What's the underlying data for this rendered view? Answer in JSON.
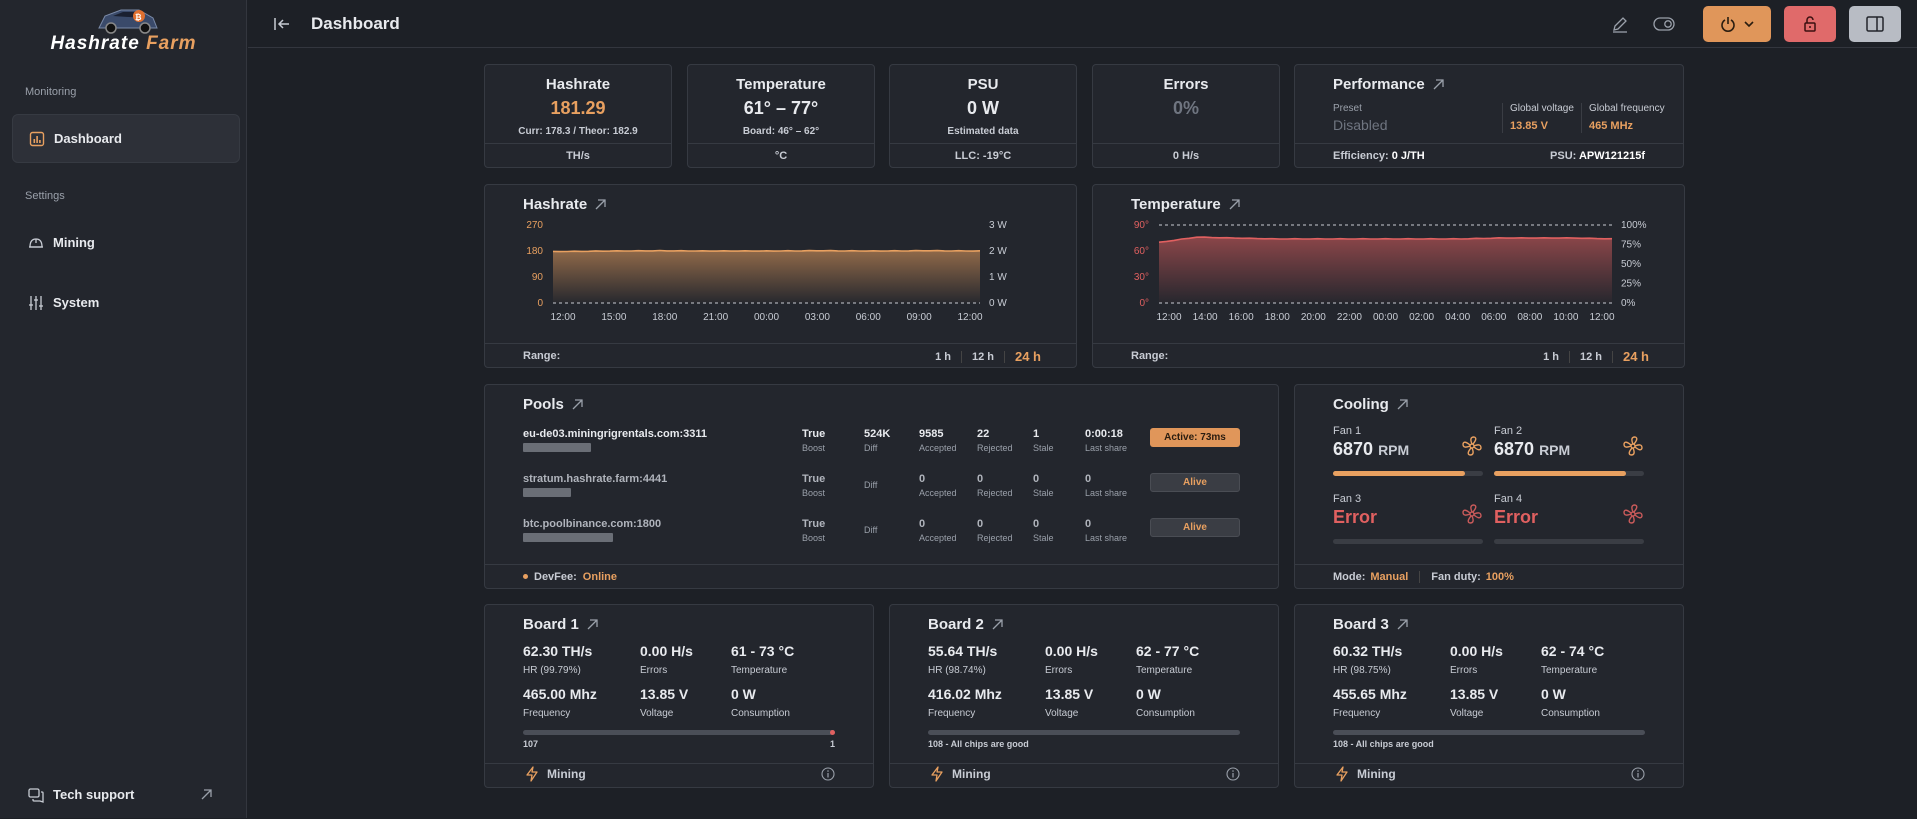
{
  "sidebar": {
    "brand_a": "Hashrate ",
    "brand_b": "Farm",
    "monitoring_label": "Monitoring",
    "settings_label": "Settings",
    "items": [
      {
        "label": "Dashboard",
        "icon": "chart-bars-icon"
      },
      {
        "label": "Mining",
        "icon": "helmet-icon"
      },
      {
        "label": "System",
        "icon": "sliders-icon"
      }
    ],
    "tech_support": "Tech support"
  },
  "header": {
    "title": "Dashboard"
  },
  "stats": {
    "hashrate": {
      "title": "Hashrate",
      "value": "181.29",
      "sub": "Curr: 178.3 / Theor: 182.9",
      "unit": "TH/s"
    },
    "temperature": {
      "title": "Temperature",
      "value": "61° – 77°",
      "sub": "Board: 46° – 62°",
      "unit": "°C"
    },
    "psu": {
      "title": "PSU",
      "value": "0 W",
      "sub": "Estimated data",
      "unit": "LLC: -19°C"
    },
    "errors": {
      "title": "Errors",
      "value": "0%",
      "unit": "0 H/s"
    },
    "performance": {
      "title": "Performance",
      "preset_label": "Preset",
      "preset_value": "Disabled",
      "voltage_label": "Global voltage",
      "voltage_value": "13.85 V",
      "freq_label": "Global frequency",
      "freq_value": "465 MHz",
      "efficiency_label": "Efficiency:",
      "efficiency_value": "0 J/TH",
      "psu_label": "PSU:",
      "psu_value": "APW121215f"
    }
  },
  "hashrate_chart": {
    "title": "Hashrate",
    "range_label": "Range:",
    "ranges": [
      "1 h",
      "12 h",
      "24 h"
    ],
    "y_left": [
      "270",
      "180",
      "90",
      "0"
    ],
    "y_right": [
      "3 W",
      "2 W",
      "1 W",
      "0 W"
    ],
    "x_ticks": [
      "12:00",
      "15:00",
      "18:00",
      "21:00",
      "00:00",
      "03:00",
      "06:00",
      "09:00",
      "12:00"
    ]
  },
  "temperature_chart": {
    "title": "Temperature",
    "range_label": "Range:",
    "ranges": [
      "1 h",
      "12 h",
      "24 h"
    ],
    "y_left": [
      "90°",
      "60°",
      "30°",
      "0°"
    ],
    "y_right": [
      "100%",
      "75%",
      "50%",
      "25%",
      "0%"
    ],
    "x_ticks": [
      "12:00",
      "14:00",
      "16:00",
      "18:00",
      "20:00",
      "22:00",
      "00:00",
      "02:00",
      "04:00",
      "06:00",
      "08:00",
      "10:00",
      "12:00"
    ]
  },
  "chart_data": [
    {
      "type": "area",
      "title": "Hashrate",
      "ylim": [
        0,
        270
      ],
      "x": [
        "12:00",
        "15:00",
        "18:00",
        "21:00",
        "00:00",
        "03:00",
        "06:00",
        "09:00",
        "12:00"
      ],
      "series": [
        {
          "values": [
            178,
            180,
            181,
            180,
            180,
            181,
            180,
            181,
            180
          ]
        }
      ]
    },
    {
      "type": "area",
      "title": "Temperature",
      "ylim": [
        0,
        90
      ],
      "x": [
        "12:00",
        "14:00",
        "16:00",
        "18:00",
        "20:00",
        "22:00",
        "00:00",
        "02:00",
        "04:00",
        "06:00",
        "08:00",
        "10:00",
        "12:00"
      ],
      "series": [
        {
          "values": [
            70,
            76,
            75,
            74,
            74,
            74,
            74,
            74,
            74,
            75,
            75,
            75,
            74
          ]
        }
      ]
    }
  ],
  "pools": {
    "title": "Pools",
    "labels": {
      "boost": "Boost",
      "diff": "Diff",
      "accepted": "Accepted",
      "rejected": "Rejected",
      "stale": "Stale",
      "last_share": "Last share"
    },
    "rows": [
      {
        "url": "eu-de03.miningrigrentals.com:3311",
        "boost": "True",
        "diff": "524K",
        "accepted": "9585",
        "rejected": "22",
        "stale": "1",
        "last_share": "0:00:18",
        "status": "Active: 73ms"
      },
      {
        "url": "stratum.hashrate.farm:4441",
        "boost": "True",
        "diff": "",
        "accepted": "0",
        "rejected": "0",
        "stale": "0",
        "last_share": "0",
        "status": "Alive"
      },
      {
        "url": "btc.poolbinance.com:1800",
        "boost": "True",
        "diff": "",
        "accepted": "0",
        "rejected": "0",
        "stale": "0",
        "last_share": "0",
        "status": "Alive"
      }
    ],
    "devfee_label": "DevFee:",
    "devfee_value": "Online"
  },
  "cooling": {
    "title": "Cooling",
    "fans": [
      {
        "label": "Fan 1",
        "value": "6870",
        "unit": "RPM",
        "level": 0.88
      },
      {
        "label": "Fan 2",
        "value": "6870",
        "unit": "RPM",
        "level": 0.88
      },
      {
        "label": "Fan 3",
        "value": "Error",
        "unit": "",
        "level": 0
      },
      {
        "label": "Fan 4",
        "value": "Error",
        "unit": "",
        "level": 0
      }
    ],
    "mode_label": "Mode:",
    "mode_value": "Manual",
    "duty_label": "Fan duty:",
    "duty_value": "100%"
  },
  "boards": [
    {
      "title": "Board 1",
      "hr": "62.30 TH/s",
      "hr_label": "HR (99.79%)",
      "errors": "0.00 H/s",
      "errors_label": "Errors",
      "temp": "61 - 73 °C",
      "temp_label": "Temperature",
      "freq": "465.00 Mhz",
      "freq_label": "Frequency",
      "volt": "13.85 V",
      "volt_label": "Voltage",
      "cons": "0 W",
      "cons_label": "Consumption",
      "chips_good": "107",
      "chips_bad": "1",
      "note": "",
      "status": "Mining"
    },
    {
      "title": "Board 2",
      "hr": "55.64 TH/s",
      "hr_label": "HR (98.74%)",
      "errors": "0.00 H/s",
      "errors_label": "Errors",
      "temp": "62 - 77 °C",
      "temp_label": "Temperature",
      "freq": "416.02 Mhz",
      "freq_label": "Frequency",
      "volt": "13.85 V",
      "volt_label": "Voltage",
      "cons": "0 W",
      "cons_label": "Consumption",
      "chips_good": "",
      "chips_bad": "",
      "note": "108 - All chips are good",
      "status": "Mining"
    },
    {
      "title": "Board 3",
      "hr": "60.32 TH/s",
      "hr_label": "HR (98.75%)",
      "errors": "0.00 H/s",
      "errors_label": "Errors",
      "temp": "62 - 74 °C",
      "temp_label": "Temperature",
      "freq": "455.65 Mhz",
      "freq_label": "Frequency",
      "volt": "13.85 V",
      "volt_label": "Voltage",
      "cons": "0 W",
      "cons_label": "Consumption",
      "chips_good": "",
      "chips_bad": "",
      "note": "108 - All chips are good",
      "status": "Mining"
    }
  ],
  "colors": {
    "accent": "#e8a060",
    "danger": "#e06060",
    "bg": "#1d2026",
    "card": "#23262d"
  }
}
